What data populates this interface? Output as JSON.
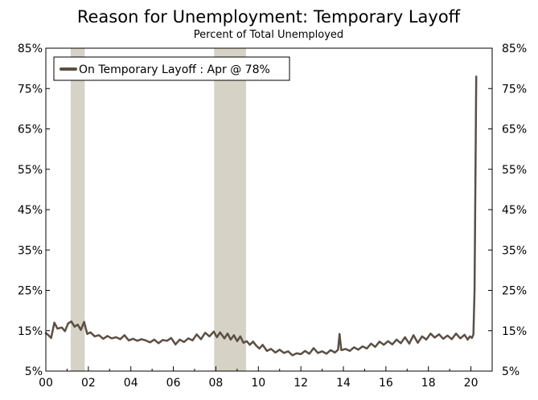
{
  "chart_data": {
    "type": "line",
    "title": "Reason for Unemployment: Temporary Layoff",
    "subtitle": "Percent of Total Unemployed",
    "legend": {
      "label": "On Temporary Layoff : Apr @ 78%",
      "placement": "top-left"
    },
    "y_axis": {
      "min": 5,
      "max": 85,
      "ticks": [
        5,
        15,
        25,
        35,
        45,
        55,
        65,
        75,
        85
      ],
      "tick_labels": [
        "5%",
        "15%",
        "25%",
        "35%",
        "45%",
        "55%",
        "65%",
        "75%",
        "85%"
      ],
      "dual": true
    },
    "x_axis": {
      "min": 2000,
      "max": 2021,
      "ticks": [
        2000,
        2002,
        2004,
        2006,
        2008,
        2010,
        2012,
        2014,
        2016,
        2018,
        2020
      ],
      "tick_labels": [
        "00",
        "02",
        "04",
        "06",
        "08",
        "10",
        "12",
        "14",
        "16",
        "18",
        "20"
      ]
    },
    "recessions": [
      {
        "start": 2001.17,
        "end": 2001.83
      },
      {
        "start": 2007.92,
        "end": 2009.42
      }
    ],
    "grid": false,
    "colors": {
      "line": "#5b4f45",
      "recession": "#d6d2c6",
      "axis": "#000000"
    },
    "series": [
      {
        "name": "On Temporary Layoff",
        "points": [
          [
            2000.0,
            14.4
          ],
          [
            2000.1,
            14.0
          ],
          [
            2000.25,
            13.2
          ],
          [
            2000.4,
            17.0
          ],
          [
            2000.55,
            15.5
          ],
          [
            2000.75,
            15.8
          ],
          [
            2000.9,
            14.9
          ],
          [
            2001.05,
            16.8
          ],
          [
            2001.2,
            17.3
          ],
          [
            2001.35,
            16.0
          ],
          [
            2001.5,
            16.5
          ],
          [
            2001.65,
            15.2
          ],
          [
            2001.8,
            17.2
          ],
          [
            2001.95,
            14.2
          ],
          [
            2002.1,
            14.6
          ],
          [
            2002.3,
            13.6
          ],
          [
            2002.5,
            13.9
          ],
          [
            2002.7,
            13.0
          ],
          [
            2002.9,
            13.7
          ],
          [
            2003.1,
            13.1
          ],
          [
            2003.3,
            13.4
          ],
          [
            2003.5,
            12.9
          ],
          [
            2003.7,
            13.9
          ],
          [
            2003.9,
            12.6
          ],
          [
            2004.1,
            13.0
          ],
          [
            2004.3,
            12.5
          ],
          [
            2004.5,
            12.9
          ],
          [
            2004.7,
            12.6
          ],
          [
            2004.9,
            12.1
          ],
          [
            2005.1,
            12.8
          ],
          [
            2005.3,
            11.9
          ],
          [
            2005.5,
            12.7
          ],
          [
            2005.7,
            12.5
          ],
          [
            2005.9,
            13.2
          ],
          [
            2006.1,
            11.6
          ],
          [
            2006.3,
            12.8
          ],
          [
            2006.5,
            12.2
          ],
          [
            2006.7,
            13.1
          ],
          [
            2006.9,
            12.6
          ],
          [
            2007.1,
            14.1
          ],
          [
            2007.3,
            12.9
          ],
          [
            2007.5,
            14.5
          ],
          [
            2007.7,
            13.6
          ],
          [
            2007.9,
            14.8
          ],
          [
            2008.05,
            13.4
          ],
          [
            2008.2,
            14.6
          ],
          [
            2008.4,
            13.1
          ],
          [
            2008.55,
            14.3
          ],
          [
            2008.7,
            12.8
          ],
          [
            2008.85,
            13.9
          ],
          [
            2009.0,
            12.4
          ],
          [
            2009.15,
            13.6
          ],
          [
            2009.3,
            12.0
          ],
          [
            2009.45,
            12.4
          ],
          [
            2009.6,
            11.5
          ],
          [
            2009.75,
            12.3
          ],
          [
            2009.9,
            11.3
          ],
          [
            2010.05,
            10.6
          ],
          [
            2010.2,
            11.5
          ],
          [
            2010.4,
            10.0
          ],
          [
            2010.6,
            10.5
          ],
          [
            2010.8,
            9.6
          ],
          [
            2011.0,
            10.3
          ],
          [
            2011.2,
            9.5
          ],
          [
            2011.4,
            9.9
          ],
          [
            2011.6,
            8.9
          ],
          [
            2011.8,
            9.4
          ],
          [
            2012.0,
            9.2
          ],
          [
            2012.2,
            10.0
          ],
          [
            2012.4,
            9.3
          ],
          [
            2012.6,
            10.7
          ],
          [
            2012.8,
            9.5
          ],
          [
            2013.0,
            9.9
          ],
          [
            2013.2,
            9.3
          ],
          [
            2013.4,
            10.2
          ],
          [
            2013.6,
            9.6
          ],
          [
            2013.75,
            10.3
          ],
          [
            2013.82,
            14.2
          ],
          [
            2013.9,
            10.2
          ],
          [
            2014.1,
            10.5
          ],
          [
            2014.3,
            10.0
          ],
          [
            2014.5,
            10.9
          ],
          [
            2014.7,
            10.3
          ],
          [
            2014.9,
            11.1
          ],
          [
            2015.1,
            10.6
          ],
          [
            2015.3,
            11.8
          ],
          [
            2015.5,
            11.0
          ],
          [
            2015.7,
            12.3
          ],
          [
            2015.9,
            11.5
          ],
          [
            2016.1,
            12.4
          ],
          [
            2016.3,
            11.6
          ],
          [
            2016.5,
            12.8
          ],
          [
            2016.7,
            11.9
          ],
          [
            2016.9,
            13.4
          ],
          [
            2017.1,
            11.8
          ],
          [
            2017.3,
            13.9
          ],
          [
            2017.5,
            12.0
          ],
          [
            2017.7,
            13.6
          ],
          [
            2017.9,
            12.8
          ],
          [
            2018.1,
            14.3
          ],
          [
            2018.3,
            13.3
          ],
          [
            2018.5,
            14.1
          ],
          [
            2018.7,
            13.0
          ],
          [
            2018.9,
            13.8
          ],
          [
            2019.1,
            12.9
          ],
          [
            2019.3,
            14.3
          ],
          [
            2019.5,
            13.1
          ],
          [
            2019.7,
            14.0
          ],
          [
            2019.85,
            12.8
          ],
          [
            2019.95,
            13.6
          ],
          [
            2020.05,
            13.2
          ],
          [
            2020.12,
            14.1
          ],
          [
            2020.17,
            25.0
          ],
          [
            2020.25,
            78.0
          ]
        ]
      }
    ]
  }
}
